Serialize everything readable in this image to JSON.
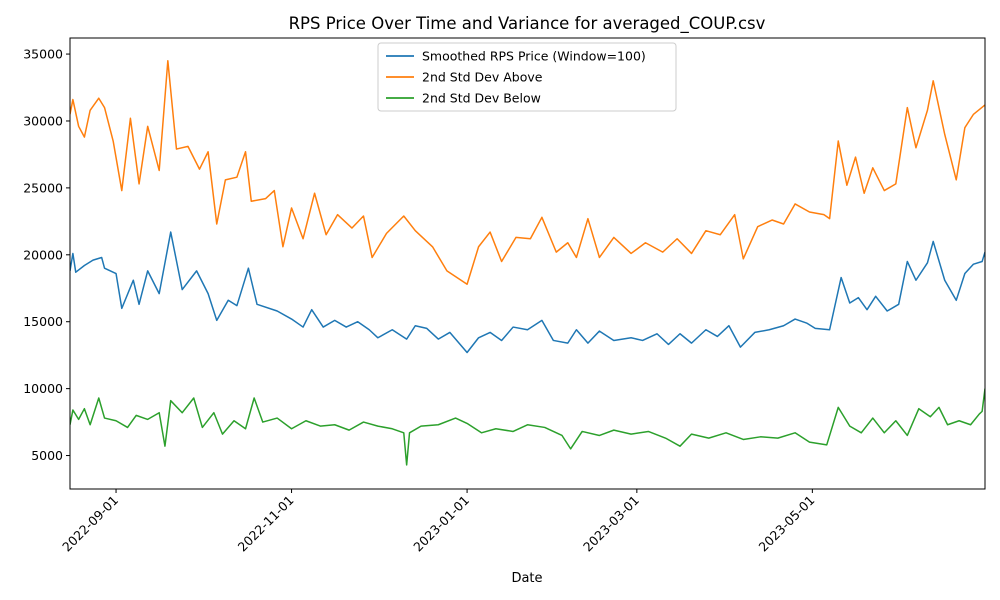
{
  "chart_data": {
    "type": "line",
    "title": "RPS Price Over Time and Variance for averaged_COUP.csv",
    "xlabel": "Date",
    "ylabel": "",
    "x_type": "date",
    "xlim": [
      "2022-08-16",
      "2023-06-30"
    ],
    "ylim": [
      2500,
      36200
    ],
    "x_ticks": [
      "2022-09-01",
      "2022-11-01",
      "2023-01-01",
      "2023-03-01",
      "2023-05-01"
    ],
    "y_ticks": [
      5000,
      10000,
      15000,
      20000,
      25000,
      30000,
      35000
    ],
    "legend_position": "top-center",
    "grid": false,
    "series": [
      {
        "name": "Smoothed RPS Price (Window=100)",
        "color": "#1f77b4",
        "points": [
          [
            "2022-08-16",
            18800
          ],
          [
            "2022-08-17",
            20100
          ],
          [
            "2022-08-18",
            18700
          ],
          [
            "2022-08-21",
            19200
          ],
          [
            "2022-08-24",
            19600
          ],
          [
            "2022-08-27",
            19800
          ],
          [
            "2022-08-28",
            19000
          ],
          [
            "2022-09-01",
            18600
          ],
          [
            "2022-09-03",
            16000
          ],
          [
            "2022-09-07",
            18100
          ],
          [
            "2022-09-09",
            16300
          ],
          [
            "2022-09-12",
            18800
          ],
          [
            "2022-09-16",
            17100
          ],
          [
            "2022-09-20",
            21700
          ],
          [
            "2022-09-24",
            17400
          ],
          [
            "2022-09-29",
            18800
          ],
          [
            "2022-10-03",
            17100
          ],
          [
            "2022-10-06",
            15100
          ],
          [
            "2022-10-10",
            16600
          ],
          [
            "2022-10-13",
            16200
          ],
          [
            "2022-10-17",
            19000
          ],
          [
            "2022-10-20",
            16300
          ],
          [
            "2022-10-27",
            15800
          ],
          [
            "2022-11-01",
            15200
          ],
          [
            "2022-11-05",
            14600
          ],
          [
            "2022-11-08",
            15900
          ],
          [
            "2022-11-12",
            14600
          ],
          [
            "2022-11-16",
            15100
          ],
          [
            "2022-11-20",
            14600
          ],
          [
            "2022-11-24",
            15000
          ],
          [
            "2022-11-28",
            14400
          ],
          [
            "2022-12-01",
            13800
          ],
          [
            "2022-12-06",
            14400
          ],
          [
            "2022-12-11",
            13700
          ],
          [
            "2022-12-14",
            14700
          ],
          [
            "2022-12-18",
            14500
          ],
          [
            "2022-12-22",
            13700
          ],
          [
            "2022-12-26",
            14200
          ],
          [
            "2023-01-01",
            12700
          ],
          [
            "2023-01-05",
            13800
          ],
          [
            "2023-01-09",
            14200
          ],
          [
            "2023-01-13",
            13600
          ],
          [
            "2023-01-17",
            14600
          ],
          [
            "2023-01-22",
            14400
          ],
          [
            "2023-01-27",
            15100
          ],
          [
            "2023-01-31",
            13600
          ],
          [
            "2023-02-05",
            13400
          ],
          [
            "2023-02-08",
            14400
          ],
          [
            "2023-02-12",
            13400
          ],
          [
            "2023-02-16",
            14300
          ],
          [
            "2023-02-21",
            13600
          ],
          [
            "2023-02-27",
            13800
          ],
          [
            "2023-03-03",
            13600
          ],
          [
            "2023-03-08",
            14100
          ],
          [
            "2023-03-12",
            13300
          ],
          [
            "2023-03-16",
            14100
          ],
          [
            "2023-03-20",
            13400
          ],
          [
            "2023-03-25",
            14400
          ],
          [
            "2023-03-29",
            13900
          ],
          [
            "2023-04-02",
            14700
          ],
          [
            "2023-04-06",
            13100
          ],
          [
            "2023-04-11",
            14200
          ],
          [
            "2023-04-16",
            14400
          ],
          [
            "2023-04-21",
            14700
          ],
          [
            "2023-04-25",
            15200
          ],
          [
            "2023-04-29",
            14900
          ],
          [
            "2023-05-02",
            14500
          ],
          [
            "2023-05-07",
            14400
          ],
          [
            "2023-05-11",
            18300
          ],
          [
            "2023-05-14",
            16400
          ],
          [
            "2023-05-17",
            16800
          ],
          [
            "2023-05-20",
            15900
          ],
          [
            "2023-05-23",
            16900
          ],
          [
            "2023-05-27",
            15800
          ],
          [
            "2023-05-31",
            16300
          ],
          [
            "2023-06-03",
            19500
          ],
          [
            "2023-06-06",
            18100
          ],
          [
            "2023-06-10",
            19400
          ],
          [
            "2023-06-12",
            21000
          ],
          [
            "2023-06-16",
            18100
          ],
          [
            "2023-06-20",
            16600
          ],
          [
            "2023-06-23",
            18600
          ],
          [
            "2023-06-26",
            19300
          ],
          [
            "2023-06-29",
            19500
          ],
          [
            "2023-06-30",
            20200
          ]
        ]
      },
      {
        "name": "2nd Std Dev Above",
        "color": "#ff7f0e",
        "points": [
          [
            "2022-08-16",
            30500
          ],
          [
            "2022-08-17",
            31600
          ],
          [
            "2022-08-19",
            29600
          ],
          [
            "2022-08-21",
            28800
          ],
          [
            "2022-08-23",
            30800
          ],
          [
            "2022-08-26",
            31700
          ],
          [
            "2022-08-28",
            31000
          ],
          [
            "2022-08-31",
            28500
          ],
          [
            "2022-09-03",
            24800
          ],
          [
            "2022-09-06",
            30200
          ],
          [
            "2022-09-09",
            25300
          ],
          [
            "2022-09-12",
            29600
          ],
          [
            "2022-09-16",
            26300
          ],
          [
            "2022-09-19",
            34500
          ],
          [
            "2022-09-22",
            27900
          ],
          [
            "2022-09-26",
            28100
          ],
          [
            "2022-09-30",
            26400
          ],
          [
            "2022-10-03",
            27700
          ],
          [
            "2022-10-06",
            22300
          ],
          [
            "2022-10-09",
            25600
          ],
          [
            "2022-10-13",
            25800
          ],
          [
            "2022-10-16",
            27700
          ],
          [
            "2022-10-18",
            24000
          ],
          [
            "2022-10-23",
            24200
          ],
          [
            "2022-10-26",
            24800
          ],
          [
            "2022-10-29",
            20600
          ],
          [
            "2022-11-01",
            23500
          ],
          [
            "2022-11-05",
            21200
          ],
          [
            "2022-11-09",
            24600
          ],
          [
            "2022-11-13",
            21500
          ],
          [
            "2022-11-17",
            23000
          ],
          [
            "2022-11-22",
            22000
          ],
          [
            "2022-11-26",
            22900
          ],
          [
            "2022-11-29",
            19800
          ],
          [
            "2022-12-04",
            21600
          ],
          [
            "2022-12-10",
            22900
          ],
          [
            "2022-12-14",
            21800
          ],
          [
            "2022-12-20",
            20600
          ],
          [
            "2022-12-25",
            18800
          ],
          [
            "2023-01-01",
            17800
          ],
          [
            "2023-01-05",
            20600
          ],
          [
            "2023-01-09",
            21700
          ],
          [
            "2023-01-13",
            19500
          ],
          [
            "2023-01-18",
            21300
          ],
          [
            "2023-01-23",
            21200
          ],
          [
            "2023-01-27",
            22800
          ],
          [
            "2023-02-01",
            20200
          ],
          [
            "2023-02-05",
            20900
          ],
          [
            "2023-02-08",
            19800
          ],
          [
            "2023-02-12",
            22700
          ],
          [
            "2023-02-16",
            19800
          ],
          [
            "2023-02-21",
            21300
          ],
          [
            "2023-02-27",
            20100
          ],
          [
            "2023-03-04",
            20900
          ],
          [
            "2023-03-10",
            20200
          ],
          [
            "2023-03-15",
            21200
          ],
          [
            "2023-03-20",
            20100
          ],
          [
            "2023-03-25",
            21800
          ],
          [
            "2023-03-30",
            21500
          ],
          [
            "2023-04-04",
            23000
          ],
          [
            "2023-04-07",
            19700
          ],
          [
            "2023-04-12",
            22100
          ],
          [
            "2023-04-17",
            22600
          ],
          [
            "2023-04-21",
            22300
          ],
          [
            "2023-04-25",
            23800
          ],
          [
            "2023-04-30",
            23200
          ],
          [
            "2023-05-05",
            23000
          ],
          [
            "2023-05-07",
            22700
          ],
          [
            "2023-05-10",
            28500
          ],
          [
            "2023-05-13",
            25200
          ],
          [
            "2023-05-16",
            27300
          ],
          [
            "2023-05-19",
            24600
          ],
          [
            "2023-05-22",
            26500
          ],
          [
            "2023-05-26",
            24800
          ],
          [
            "2023-05-30",
            25300
          ],
          [
            "2023-06-03",
            31000
          ],
          [
            "2023-06-06",
            28000
          ],
          [
            "2023-06-10",
            30800
          ],
          [
            "2023-06-12",
            33000
          ],
          [
            "2023-06-16",
            29000
          ],
          [
            "2023-06-20",
            25600
          ],
          [
            "2023-06-23",
            29500
          ],
          [
            "2023-06-26",
            30500
          ],
          [
            "2023-06-30",
            31200
          ]
        ]
      },
      {
        "name": "2nd Std Dev Below",
        "color": "#2ca02c",
        "points": [
          [
            "2022-08-16",
            7300
          ],
          [
            "2022-08-17",
            8400
          ],
          [
            "2022-08-19",
            7700
          ],
          [
            "2022-08-21",
            8500
          ],
          [
            "2022-08-23",
            7300
          ],
          [
            "2022-08-26",
            9300
          ],
          [
            "2022-08-28",
            7800
          ],
          [
            "2022-09-01",
            7600
          ],
          [
            "2022-09-05",
            7100
          ],
          [
            "2022-09-08",
            8000
          ],
          [
            "2022-09-12",
            7700
          ],
          [
            "2022-09-16",
            8200
          ],
          [
            "2022-09-18",
            5700
          ],
          [
            "2022-09-20",
            9100
          ],
          [
            "2022-09-24",
            8200
          ],
          [
            "2022-09-28",
            9300
          ],
          [
            "2022-10-01",
            7100
          ],
          [
            "2022-10-05",
            8200
          ],
          [
            "2022-10-08",
            6600
          ],
          [
            "2022-10-12",
            7600
          ],
          [
            "2022-10-16",
            7000
          ],
          [
            "2022-10-19",
            9300
          ],
          [
            "2022-10-22",
            7500
          ],
          [
            "2022-10-27",
            7800
          ],
          [
            "2022-11-01",
            7000
          ],
          [
            "2022-11-06",
            7600
          ],
          [
            "2022-11-11",
            7200
          ],
          [
            "2022-11-16",
            7300
          ],
          [
            "2022-11-21",
            6900
          ],
          [
            "2022-11-26",
            7500
          ],
          [
            "2022-12-01",
            7200
          ],
          [
            "2022-12-06",
            7000
          ],
          [
            "2022-12-10",
            6700
          ],
          [
            "2022-12-11",
            4300
          ],
          [
            "2022-12-12",
            6700
          ],
          [
            "2022-12-16",
            7200
          ],
          [
            "2022-12-22",
            7300
          ],
          [
            "2022-12-28",
            7800
          ],
          [
            "2023-01-01",
            7400
          ],
          [
            "2023-01-06",
            6700
          ],
          [
            "2023-01-11",
            7000
          ],
          [
            "2023-01-17",
            6800
          ],
          [
            "2023-01-22",
            7300
          ],
          [
            "2023-01-28",
            7100
          ],
          [
            "2023-02-03",
            6500
          ],
          [
            "2023-02-06",
            5500
          ],
          [
            "2023-02-10",
            6800
          ],
          [
            "2023-02-16",
            6500
          ],
          [
            "2023-02-21",
            6900
          ],
          [
            "2023-02-27",
            6600
          ],
          [
            "2023-03-05",
            6800
          ],
          [
            "2023-03-11",
            6300
          ],
          [
            "2023-03-16",
            5700
          ],
          [
            "2023-03-20",
            6600
          ],
          [
            "2023-03-26",
            6300
          ],
          [
            "2023-04-01",
            6700
          ],
          [
            "2023-04-07",
            6200
          ],
          [
            "2023-04-13",
            6400
          ],
          [
            "2023-04-19",
            6300
          ],
          [
            "2023-04-25",
            6700
          ],
          [
            "2023-04-30",
            6000
          ],
          [
            "2023-05-06",
            5800
          ],
          [
            "2023-05-10",
            8600
          ],
          [
            "2023-05-14",
            7200
          ],
          [
            "2023-05-18",
            6700
          ],
          [
            "2023-05-22",
            7800
          ],
          [
            "2023-05-26",
            6700
          ],
          [
            "2023-05-30",
            7600
          ],
          [
            "2023-06-03",
            6500
          ],
          [
            "2023-06-07",
            8500
          ],
          [
            "2023-06-11",
            7900
          ],
          [
            "2023-06-14",
            8600
          ],
          [
            "2023-06-17",
            7300
          ],
          [
            "2023-06-21",
            7600
          ],
          [
            "2023-06-25",
            7300
          ],
          [
            "2023-06-28",
            8100
          ],
          [
            "2023-06-29",
            8300
          ],
          [
            "2023-06-30",
            10000
          ]
        ]
      }
    ]
  }
}
